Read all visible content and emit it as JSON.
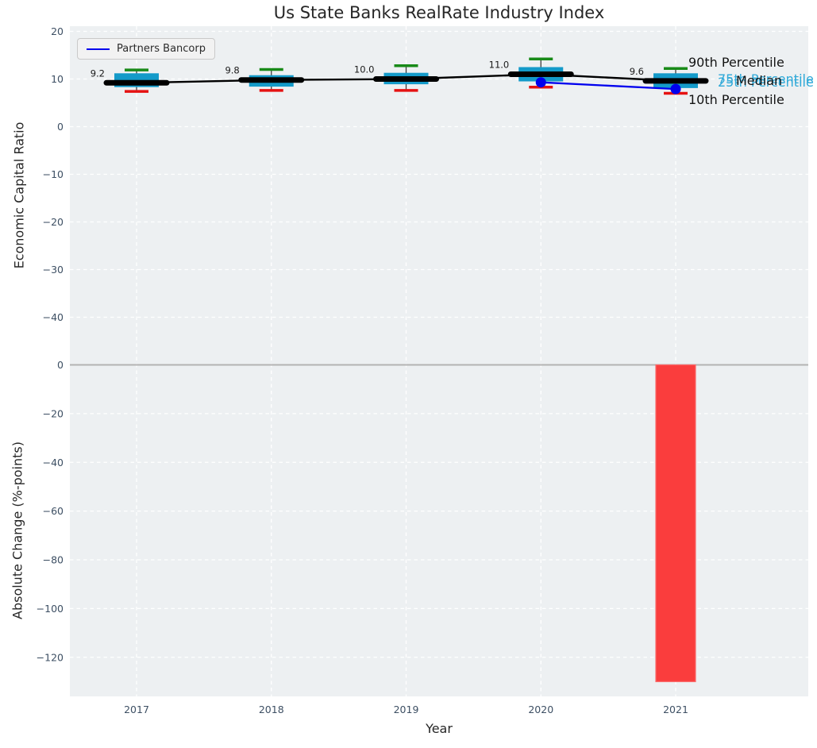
{
  "title": "Us State Banks RealRate Industry Index",
  "legend": {
    "label": "Partners Bancorp"
  },
  "axes": {
    "top": {
      "ylabel": "Economic Capital Ratio",
      "yticks": [
        20,
        10,
        0,
        -10,
        -20,
        -30,
        -40
      ]
    },
    "bottom": {
      "ylabel": "Absolute Change (%-points)",
      "xlabel": "Year",
      "yticks": [
        0,
        -20,
        -40,
        -60,
        -80,
        -100,
        -120
      ]
    }
  },
  "annotations": {
    "p90": "90th Percentile",
    "p75": "75th Percentile",
    "median": "Median",
    "p25": "25th Percentile",
    "p10": "10th Percentile"
  },
  "colors": {
    "box": "#149ac9",
    "cap_top": "#188a18",
    "cap_bottom": "#e51212",
    "median": "#000000",
    "partner": "#0000ee",
    "bar": "#fa3d3d",
    "bar_edge": "#fb6b6b",
    "grid": "#ffffff",
    "bg": "#edf0f2",
    "tick": "#3d4f63",
    "label": "#1a1a1a",
    "zero_line": "#b3b3b3",
    "annotation_cyan": "#2fa9d8",
    "whisker": "#3c3c3c"
  },
  "chart_data": [
    {
      "type": "box",
      "title": "Us State Banks RealRate Industry Index",
      "ylabel": "Economic Capital Ratio",
      "categories": [
        "2017",
        "2018",
        "2019",
        "2020",
        "2021"
      ],
      "ylim": [
        -50,
        21
      ],
      "grid": true,
      "legend_position": "upper left",
      "boxes": [
        {
          "year": "2017",
          "p10": 7.4,
          "p25": 8.3,
          "median": 9.2,
          "p75": 11.2,
          "p90": 11.9,
          "label": "9.2"
        },
        {
          "year": "2018",
          "p10": 7.6,
          "p25": 8.4,
          "median": 9.8,
          "p75": 10.8,
          "p90": 12.0,
          "label": "9.8"
        },
        {
          "year": "2019",
          "p10": 7.6,
          "p25": 8.9,
          "median": 10.0,
          "p75": 11.3,
          "p90": 12.8,
          "label": "10.0"
        },
        {
          "year": "2020",
          "p10": 8.3,
          "p25": 9.5,
          "median": 11.0,
          "p75": 12.5,
          "p90": 14.2,
          "label": "11.0"
        },
        {
          "year": "2021",
          "p10": 7.0,
          "p25": 8.1,
          "median": 9.6,
          "p75": 11.2,
          "p90": 12.2,
          "label": "9.6"
        }
      ],
      "series": [
        {
          "name": "Partners Bancorp",
          "x": [
            "2020",
            "2021"
          ],
          "values": [
            9.3,
            7.9
          ]
        }
      ]
    },
    {
      "type": "bar",
      "ylabel": "Absolute Change (%-points)",
      "xlabel": "Year",
      "categories": [
        "2017",
        "2018",
        "2019",
        "2020",
        "2021"
      ],
      "values": [
        null,
        null,
        null,
        null,
        -130
      ],
      "ylim": [
        -136,
        0
      ],
      "grid": true
    }
  ]
}
